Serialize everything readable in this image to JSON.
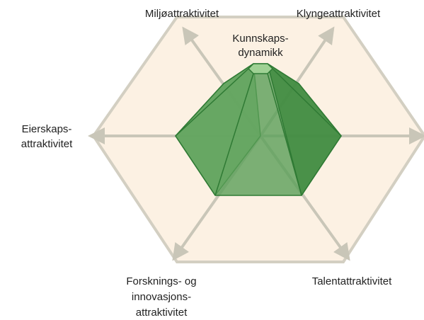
{
  "labels": {
    "top_left": [
      "Miljøattraktivitet"
    ],
    "top_right": [
      "Klyngeattraktivitet"
    ],
    "center_top": [
      "Kunnskaps-",
      "dynamikk"
    ],
    "left": [
      "Eierskaps-",
      "attraktivitet"
    ],
    "bottom_right": [
      "Talentattraktivitet"
    ],
    "bottom_left": [
      "Forsknings- og",
      "innovasjons-",
      "attraktivitet"
    ]
  }
}
